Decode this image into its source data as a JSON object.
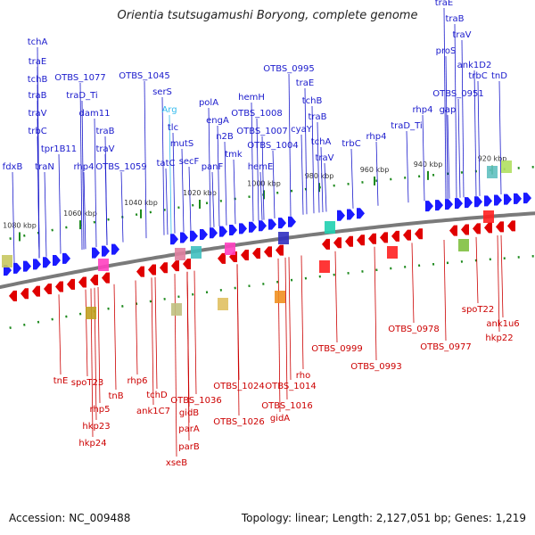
{
  "title": "Orientia tsutsugamushi Boryong, complete genome",
  "footer": {
    "accession": "Accession: NC_009488",
    "summary": "Topology: linear; Length: 2,127,051 bp; Genes: 1,219"
  },
  "colors": {
    "forward": "#1a1aff",
    "reverse": "#e00000",
    "label_forward": "#1a1acc",
    "label_reverse": "#cc0000",
    "rna_label": "#33bbee",
    "backbone": "#7a7a7a",
    "tick": "#1e8a1e",
    "ticklabel": "#333333"
  },
  "ticks": [
    {
      "label": "920 kbp"
    },
    {
      "label": "940 kbp"
    },
    {
      "label": "960 kbp"
    },
    {
      "label": "980 kbp"
    },
    {
      "label": "1000 kbp"
    },
    {
      "label": "1020 kbp"
    },
    {
      "label": "1040 kbp"
    },
    {
      "label": "1060 kbp"
    },
    {
      "label": "1080 kbp"
    }
  ],
  "forward_labels": [
    "fdxB",
    "tchA",
    "traE",
    "tchB",
    "traB",
    "traV",
    "trbC",
    "traN",
    "tpr1B11",
    "OTBS_1077",
    "traD_Ti",
    "dam11",
    "rhp4",
    "traB",
    "traV",
    "OTBS_1059",
    "OTBS_1045",
    "serS",
    "Arg",
    "tlc",
    "tatC",
    "mutS",
    "secF",
    "polA",
    "engA",
    "n2B",
    "tmk",
    "panF",
    "hemH",
    "OTBS_1008",
    "OTBS_1007",
    "OTBS_1004",
    "hemE",
    "OTBS_0995",
    "traE",
    "tchB",
    "cyaY",
    "traB",
    "tchA",
    "traV",
    "trbC",
    "rhp4",
    "traD_Ti",
    "rhp4",
    "gap",
    "traE",
    "traB",
    "traV",
    "proS",
    "ank1D2",
    "trbC",
    "tnD",
    "OTBS_0951"
  ],
  "reverse_labels": [
    "tnE",
    "spoT23",
    "rhp5",
    "hkp23",
    "hkp24",
    "tnB",
    "rhp6",
    "tchD",
    "ank1C7",
    "OTBS_1036",
    "gidB",
    "parA",
    "parB",
    "xseB",
    "OTBS_1024",
    "OTBS_1026",
    "OTBS_1014",
    "rho",
    "OTBS_1016",
    "gidA",
    "OTBS_0999",
    "OTBS_0993",
    "OTBS_0978",
    "OTBS_0977",
    "spoT22",
    "ank1u6",
    "hkp22"
  ]
}
